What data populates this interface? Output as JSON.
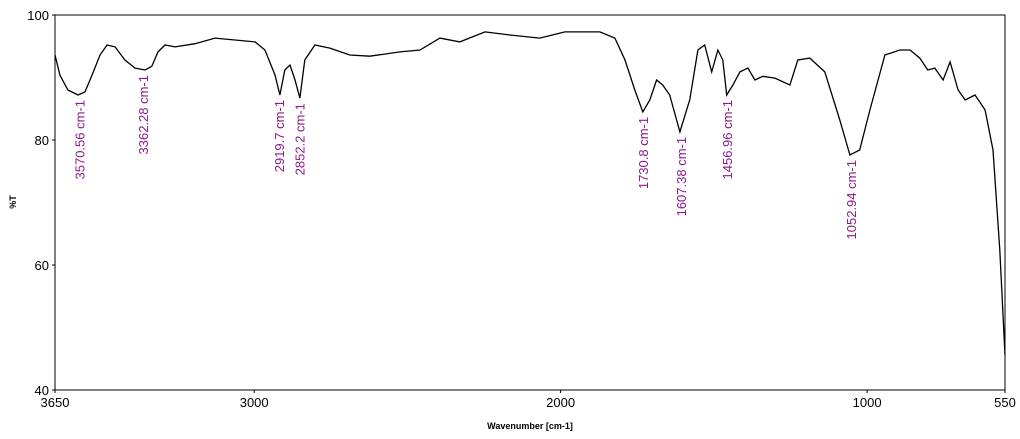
{
  "chart_data": {
    "type": "line",
    "xlabel": "Wavenumber [cm-1]",
    "ylabel": "%T",
    "x": [
      3650,
      3634,
      3608,
      3575,
      3552,
      3529,
      3503,
      3480,
      3454,
      3422,
      3389,
      3356,
      3334,
      3314,
      3291,
      3258,
      3193,
      3128,
      3063,
      2997,
      2965,
      2932,
      2916,
      2900,
      2883,
      2867,
      2851,
      2835,
      2802,
      2753,
      2688,
      2623,
      2524,
      2459,
      2394,
      2329,
      2247,
      2166,
      2068,
      1986,
      1872,
      1823,
      1790,
      1758,
      1732,
      1709,
      1687,
      1667,
      1644,
      1611,
      1579,
      1552,
      1530,
      1507,
      1487,
      1471,
      1458,
      1438,
      1415,
      1389,
      1366,
      1340,
      1301,
      1252,
      1226,
      1187,
      1138,
      1089,
      1056,
      1024,
      991,
      942,
      893,
      860,
      828,
      802,
      779,
      752,
      729,
      703,
      680,
      648,
      615,
      589,
      567,
      550
    ],
    "values": [
      93.6,
      90.4,
      88,
      87.2,
      87.7,
      90.4,
      93.6,
      95.2,
      94.9,
      92.8,
      91.5,
      91.2,
      91.8,
      94.1,
      95.2,
      94.9,
      95.4,
      96.3,
      96,
      95.7,
      94.4,
      90.4,
      87.2,
      91.2,
      92,
      89.6,
      86.7,
      92.8,
      95.2,
      94.7,
      93.6,
      93.4,
      94.1,
      94.4,
      96.3,
      95.7,
      97.3,
      96.8,
      96.3,
      97.3,
      97.3,
      96.3,
      92.8,
      88,
      84.5,
      86.4,
      89.6,
      88.8,
      87.2,
      81.3,
      86.4,
      94.4,
      95.2,
      90.9,
      94.4,
      92.8,
      87.2,
      88.8,
      90.9,
      91.5,
      89.6,
      90.2,
      89.9,
      88.8,
      92.8,
      93.1,
      90.9,
      83.2,
      77.6,
      78.4,
      84.8,
      93.6,
      94.4,
      94.4,
      93.1,
      91.2,
      91.5,
      89.6,
      92.5,
      88,
      86.4,
      87.2,
      84.8,
      78.4,
      62.4,
      45.6
    ],
    "color": "#000000",
    "xlim": [
      3650,
      550
    ],
    "ylim": [
      40,
      100
    ],
    "xticks": [
      3650,
      3000,
      2000,
      1000,
      550
    ],
    "yticks": [
      40,
      60,
      80,
      100
    ],
    "annotation_color": "#8b1a8b",
    "annotations": [
      {
        "text": "3570.56 cm-1",
        "x": 3570.56,
        "y": 87.2
      },
      {
        "text": "3362.28 cm-1",
        "x": 3362.28,
        "y": 91.2
      },
      {
        "text": "2919.7 cm-1",
        "x": 2919.7,
        "y": 87.2
      },
      {
        "text": "2852.2 cm-1",
        "x": 2852.2,
        "y": 86.7
      },
      {
        "text": "1730.8 cm-1",
        "x": 1730.8,
        "y": 84.5
      },
      {
        "text": "1607.38 cm-1",
        "x": 1607.38,
        "y": 81.3
      },
      {
        "text": "1456.96 cm-1",
        "x": 1456.96,
        "y": 87.2
      },
      {
        "text": "1052.94 cm-1",
        "x": 1052.94,
        "y": 77.6
      }
    ]
  }
}
